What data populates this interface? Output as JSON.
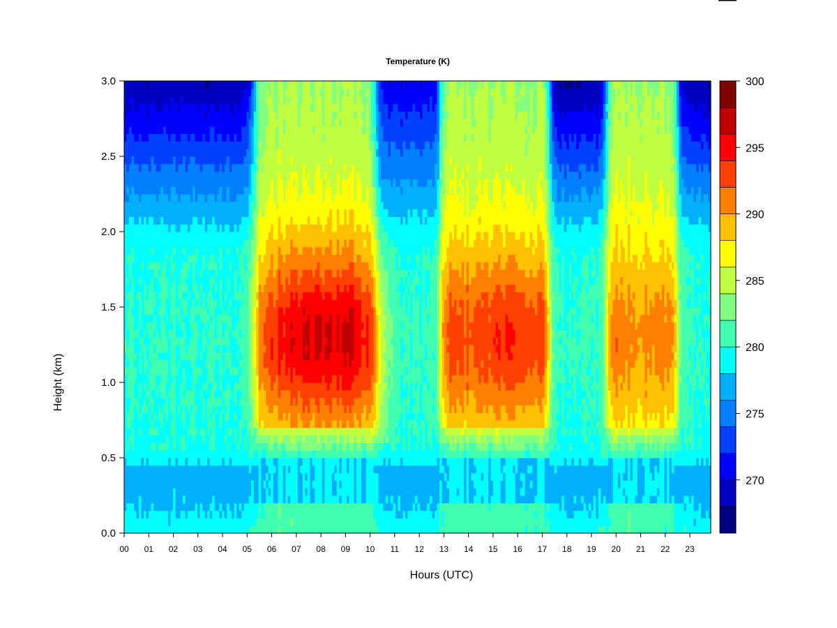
{
  "chart_data": {
    "type": "heatmap",
    "title": "Temperature (K)",
    "xlabel": "Hours (UTC)",
    "ylabel": "Height (km)",
    "xlim": [
      0,
      23.85
    ],
    "ylim": [
      0,
      3.0
    ],
    "x_ticks": [
      "00",
      "01",
      "02",
      "03",
      "04",
      "05",
      "06",
      "07",
      "08",
      "09",
      "10",
      "11",
      "12",
      "13",
      "14",
      "15",
      "16",
      "17",
      "18",
      "19",
      "20",
      "21",
      "22",
      "23"
    ],
    "y_ticks": [
      "0.0",
      "0.5",
      "1.0",
      "1.5",
      "2.0",
      "2.5",
      "3.0"
    ],
    "colorbar": {
      "min": 266,
      "max": 300,
      "level_step": 2,
      "tick_labels": [
        "270",
        "275",
        "280",
        "285",
        "290",
        "295",
        "300"
      ],
      "colors": [
        "#000080",
        "#0000c0",
        "#0000ff",
        "#0040ff",
        "#0080ff",
        "#00b0ff",
        "#00ffff",
        "#40ffb0",
        "#80ff80",
        "#c0ff40",
        "#ffff00",
        "#ffc000",
        "#ff8000",
        "#ff4000",
        "#ff0000",
        "#c00000",
        "#800000"
      ]
    },
    "grid": false,
    "z_units": "K",
    "warm_periods_hours": [
      [
        5.2,
        10.5
      ],
      [
        12.8,
        17.5
      ],
      [
        19.6,
        22.6
      ]
    ],
    "cold_periods_hours": [
      [
        0.0,
        5.2
      ],
      [
        10.5,
        12.8
      ],
      [
        17.5,
        19.6
      ],
      [
        22.6,
        23.85
      ]
    ]
  }
}
